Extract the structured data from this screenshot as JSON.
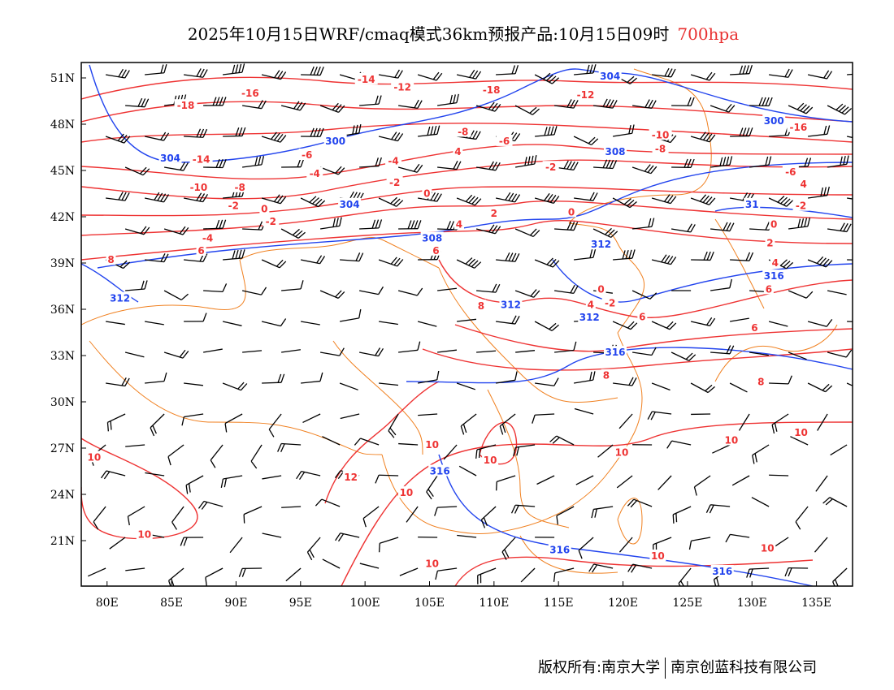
{
  "title": {
    "main": "2025年10月15日WRF/cmaq模式36km预报产品:10月15日09时",
    "level": "700hpa"
  },
  "footer": {
    "left": "版权所有:南京大学",
    "right": "南京创蓝科技有限公司"
  },
  "colors": {
    "temperature": "#ee3333",
    "height": "#2244ee",
    "border": "#f08020",
    "wind": "#000000"
  },
  "axes": {
    "lon_ticks": [
      "80E",
      "85E",
      "90E",
      "95E",
      "100E",
      "105E",
      "110E",
      "115E",
      "120E",
      "125E",
      "130E",
      "135E"
    ],
    "lon_values": [
      80,
      85,
      90,
      95,
      100,
      105,
      110,
      115,
      120,
      125,
      130,
      135
    ],
    "lat_ticks": [
      "51N",
      "48N",
      "45N",
      "42N",
      "39N",
      "36N",
      "33N",
      "30N",
      "27N",
      "24N",
      "21N"
    ],
    "lat_values": [
      51,
      48,
      45,
      42,
      39,
      36,
      33,
      30,
      27,
      24,
      21
    ]
  },
  "temperature_labels": [
    {
      "t": "-14",
      "lon": 100.1,
      "lat": 50.9
    },
    {
      "t": "-12",
      "lon": 102.9,
      "lat": 50.4
    },
    {
      "t": "-18",
      "lon": 109.8,
      "lat": 50.2
    },
    {
      "t": "-12",
      "lon": 117.1,
      "lat": 49.9
    },
    {
      "t": "-16",
      "lon": 91.1,
      "lat": 50.0
    },
    {
      "t": "-18",
      "lon": 86.1,
      "lat": 49.2
    },
    {
      "t": "-8",
      "lon": 107.6,
      "lat": 47.5
    },
    {
      "t": "-6",
      "lon": 110.8,
      "lat": 46.9
    },
    {
      "t": "-10",
      "lon": 122.9,
      "lat": 47.3
    },
    {
      "t": "-16",
      "lon": 133.6,
      "lat": 47.8
    },
    {
      "t": "-8",
      "lon": 122.9,
      "lat": 46.4
    },
    {
      "t": "4",
      "lon": 107.2,
      "lat": 46.2
    },
    {
      "t": "-4",
      "lon": 102.2,
      "lat": 45.6
    },
    {
      "t": "-14",
      "lon": 87.3,
      "lat": 45.7
    },
    {
      "t": "-6",
      "lon": 95.5,
      "lat": 46.0
    },
    {
      "t": "-4",
      "lon": 96.1,
      "lat": 44.8
    },
    {
      "t": "-10",
      "lon": 87.1,
      "lat": 43.9
    },
    {
      "t": "-8",
      "lon": 90.3,
      "lat": 43.9
    },
    {
      "t": "-2",
      "lon": 89.8,
      "lat": 42.7
    },
    {
      "t": "0",
      "lon": 92.2,
      "lat": 42.5
    },
    {
      "t": "-2",
      "lon": 92.7,
      "lat": 41.8
    },
    {
      "t": "-2",
      "lon": 102.3,
      "lat": 44.2
    },
    {
      "t": "0",
      "lon": 104.8,
      "lat": 43.5
    },
    {
      "t": "-2",
      "lon": 114.4,
      "lat": 45.2
    },
    {
      "t": "4",
      "lon": 107.3,
      "lat": 41.5
    },
    {
      "t": "2",
      "lon": 110.0,
      "lat": 42.2
    },
    {
      "t": "0",
      "lon": 116.0,
      "lat": 42.3
    },
    {
      "t": "-6",
      "lon": 133.0,
      "lat": 44.9
    },
    {
      "t": "4",
      "lon": 134.0,
      "lat": 44.2
    },
    {
      "t": "-2",
      "lon": 133.8,
      "lat": 42.7
    },
    {
      "t": "0",
      "lon": 131.7,
      "lat": 41.5
    },
    {
      "t": "2",
      "lon": 131.4,
      "lat": 40.3
    },
    {
      "t": "4",
      "lon": 131.8,
      "lat": 39.0
    },
    {
      "t": "-4",
      "lon": 87.8,
      "lat": 40.6
    },
    {
      "t": "6",
      "lon": 87.3,
      "lat": 40.0
    },
    {
      "t": "8",
      "lon": 80.3,
      "lat": 39.2
    },
    {
      "t": "6",
      "lon": 105.5,
      "lat": 39.8
    },
    {
      "t": "8",
      "lon": 109.0,
      "lat": 36.2
    },
    {
      "t": "0",
      "lon": 118.3,
      "lat": 37.3
    },
    {
      "t": "-2",
      "lon": 119.0,
      "lat": 36.4
    },
    {
      "t": "4",
      "lon": 117.5,
      "lat": 36.3
    },
    {
      "t": "6",
      "lon": 121.5,
      "lat": 35.5
    },
    {
      "t": "6",
      "lon": 131.3,
      "lat": 37.3
    },
    {
      "t": "6",
      "lon": 130.2,
      "lat": 34.8
    },
    {
      "t": "8",
      "lon": 118.7,
      "lat": 31.7
    },
    {
      "t": "8",
      "lon": 130.7,
      "lat": 31.3
    },
    {
      "t": "10",
      "lon": 79.0,
      "lat": 26.4
    },
    {
      "t": "10",
      "lon": 82.9,
      "lat": 21.4
    },
    {
      "t": "10",
      "lon": 105.2,
      "lat": 27.2
    },
    {
      "t": "10",
      "lon": 109.7,
      "lat": 26.2
    },
    {
      "t": "12",
      "lon": 98.9,
      "lat": 25.1
    },
    {
      "t": "10",
      "lon": 103.2,
      "lat": 24.1
    },
    {
      "t": "10",
      "lon": 119.9,
      "lat": 26.7
    },
    {
      "t": "10",
      "lon": 128.4,
      "lat": 27.5
    },
    {
      "t": "10",
      "lon": 133.8,
      "lat": 28.0
    },
    {
      "t": "10",
      "lon": 122.7,
      "lat": 20.0
    },
    {
      "t": "10",
      "lon": 131.2,
      "lat": 20.5
    },
    {
      "t": "10",
      "lon": 105.2,
      "lat": 19.5
    }
  ],
  "height_labels": [
    {
      "t": "304",
      "lon": 119.0,
      "lat": 51.1
    },
    {
      "t": "300",
      "lon": 131.7,
      "lat": 48.2
    },
    {
      "t": "300",
      "lon": 97.7,
      "lat": 46.9
    },
    {
      "t": "304",
      "lon": 84.9,
      "lat": 45.8
    },
    {
      "t": "308",
      "lon": 119.4,
      "lat": 46.2
    },
    {
      "t": "304",
      "lon": 98.8,
      "lat": 42.8
    },
    {
      "t": "308",
      "lon": 105.2,
      "lat": 40.4
    },
    {
      "t": "312",
      "lon": 118.3,
      "lat": 40.2
    },
    {
      "t": "316",
      "lon": 131.7,
      "lat": 39.1
    },
    {
      "t": "312",
      "lon": 81.0,
      "lat": 36.7
    },
    {
      "t": "312",
      "lon": 111.3,
      "lat": 36.3
    },
    {
      "t": "312",
      "lon": 117.4,
      "lat": 35.8
    },
    {
      "t": "316",
      "lon": 119.4,
      "lat": 33.2
    },
    {
      "t": "316",
      "lon": 105.8,
      "lat": 25.5
    },
    {
      "t": "316",
      "lon": 115.1,
      "lat": 20.4
    },
    {
      "t": "316",
      "lon": 127.7,
      "lat": 19.0
    },
    {
      "t": "31",
      "lon": 130.0,
      "lat": 42.8
    }
  ]
}
